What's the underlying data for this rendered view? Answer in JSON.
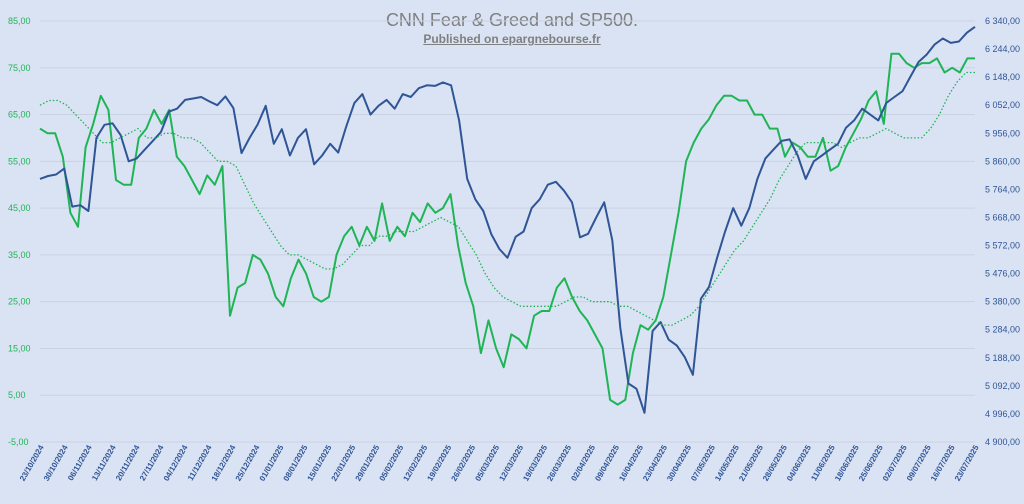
{
  "chart_data": {
    "type": "line",
    "title": "CNN Fear & Greed and SP500.",
    "subtitle": "Published  on epargnebourse.fr",
    "colors": {
      "fg": "#1fb455",
      "sp": "#2f5597",
      "ma": "#1fb455",
      "left_axis": "#1fb455",
      "right_axis": "#2f5597",
      "grid": "#c9d2e3"
    },
    "left_axis": {
      "min": -5,
      "max": 85,
      "ticks": [
        "85,00",
        "75,00",
        "65,00",
        "55,00",
        "45,00",
        "35,00",
        "25,00",
        "15,00",
        "5,00",
        "-5,00"
      ]
    },
    "right_axis": {
      "min": 4900,
      "max": 6340,
      "ticks": [
        "6 340,00",
        "6 244,00",
        "6 148,00",
        "6 052,00",
        "5 956,00",
        "5 860,00",
        "5 764,00",
        "5 668,00",
        "5 572,00",
        "5 476,00",
        "5 380,00",
        "5 284,00",
        "5 188,00",
        "5 092,00",
        "4 996,00",
        "4 900,00"
      ]
    },
    "x_labels": [
      "23/10/2024",
      "30/10/2024",
      "06/11/2024",
      "13/11/2024",
      "20/11/2024",
      "27/11/2024",
      "04/12/2024",
      "11/12/2024",
      "18/12/2024",
      "25/12/2024",
      "01/01/2025",
      "08/01/2025",
      "15/01/2025",
      "22/01/2025",
      "29/01/2025",
      "05/02/2025",
      "12/02/2025",
      "19/02/2025",
      "26/02/2025",
      "05/03/2025",
      "12/03/2025",
      "19/03/2025",
      "26/03/2025",
      "02/04/2025",
      "09/04/2025",
      "16/04/2025",
      "23/04/2025",
      "30/04/2025",
      "07/05/2025",
      "14/05/2025",
      "21/05/2025",
      "28/05/2025",
      "04/06/2025",
      "11/06/2025",
      "18/06/2025",
      "25/06/2025",
      "02/07/2025",
      "09/07/2025",
      "16/07/2025",
      "23/07/2025"
    ],
    "series": [
      {
        "key": "fg",
        "axis": "left",
        "style": "solid",
        "values": [
          62,
          61,
          61,
          56,
          44,
          41,
          58,
          63,
          69,
          66,
          51,
          50,
          50,
          60,
          62,
          66,
          63,
          66,
          56,
          54,
          51,
          48,
          52,
          50,
          54,
          22,
          28,
          29,
          35,
          34,
          31,
          26,
          24,
          30,
          34,
          31,
          26,
          25,
          26,
          35,
          39,
          41,
          37,
          41,
          38,
          46,
          38,
          41,
          39,
          44,
          42,
          46,
          44,
          45,
          48,
          37,
          29,
          24,
          14,
          21,
          15,
          11,
          18,
          17,
          15,
          22,
          23,
          23,
          28,
          30,
          26,
          23,
          21,
          18,
          15,
          4,
          3,
          4,
          14,
          20,
          19,
          21,
          26,
          35,
          44,
          55,
          59,
          62,
          64,
          67,
          69,
          69,
          68,
          68,
          65,
          65,
          62,
          62,
          56,
          59,
          58,
          56,
          56,
          60,
          53,
          54,
          58,
          61,
          64,
          68,
          70,
          63,
          78,
          78,
          76,
          75,
          76,
          76,
          77,
          74,
          75,
          74,
          77,
          77
        ]
      },
      {
        "key": "sp",
        "axis": "right",
        "style": "solid",
        "values": [
          5800,
          5810,
          5815,
          5835,
          5705,
          5710,
          5690,
          5940,
          5985,
          5990,
          5950,
          5860,
          5870,
          5900,
          5930,
          5960,
          6030,
          6040,
          6070,
          6075,
          6080,
          6065,
          6052,
          6082,
          6042,
          5888,
          5940,
          5986,
          6050,
          5920,
          5970,
          5880,
          5940,
          5970,
          5850,
          5880,
          5920,
          5890,
          5980,
          6060,
          6090,
          6020,
          6050,
          6070,
          6040,
          6090,
          6080,
          6110,
          6120,
          6118,
          6130,
          6120,
          6000,
          5800,
          5730,
          5690,
          5610,
          5560,
          5530,
          5602,
          5620,
          5700,
          5730,
          5780,
          5790,
          5760,
          5720,
          5600,
          5612,
          5668,
          5720,
          5590,
          5290,
          5100,
          5082,
          5000,
          5280,
          5310,
          5250,
          5230,
          5190,
          5130,
          5390,
          5430,
          5530,
          5620,
          5700,
          5640,
          5700,
          5800,
          5870,
          5900,
          5930,
          5935,
          5880,
          5800,
          5860,
          5880,
          5900,
          5920,
          5975,
          6000,
          6040,
          6020,
          6000,
          6060,
          6080,
          6100,
          6150,
          6200,
          6225,
          6260,
          6280,
          6265,
          6270,
          6300,
          6320
        ]
      },
      {
        "key": "ma",
        "axis": "left",
        "style": "dotted",
        "values": [
          67,
          68,
          68,
          67,
          65,
          63,
          61,
          59,
          59,
          60,
          61,
          62,
          60,
          60,
          61,
          61,
          60,
          60,
          59,
          57,
          55,
          55,
          54,
          50,
          46,
          43,
          40,
          37,
          35,
          35,
          34,
          33,
          32,
          32,
          33,
          35,
          37,
          37,
          39,
          39,
          40,
          40,
          40,
          41,
          42,
          43,
          42,
          41,
          38,
          35,
          31,
          28,
          26,
          25,
          24,
          24,
          24,
          24,
          24,
          25,
          26,
          26,
          25,
          25,
          25,
          24,
          24,
          23,
          22,
          21,
          20,
          20,
          21,
          22,
          24,
          27,
          30,
          33,
          36,
          38,
          41,
          44,
          47,
          51,
          54,
          57,
          59,
          59,
          59,
          59,
          58,
          59,
          60,
          60,
          61,
          62,
          61,
          60,
          60,
          60,
          62,
          65,
          69,
          72,
          74,
          74
        ]
      }
    ]
  }
}
